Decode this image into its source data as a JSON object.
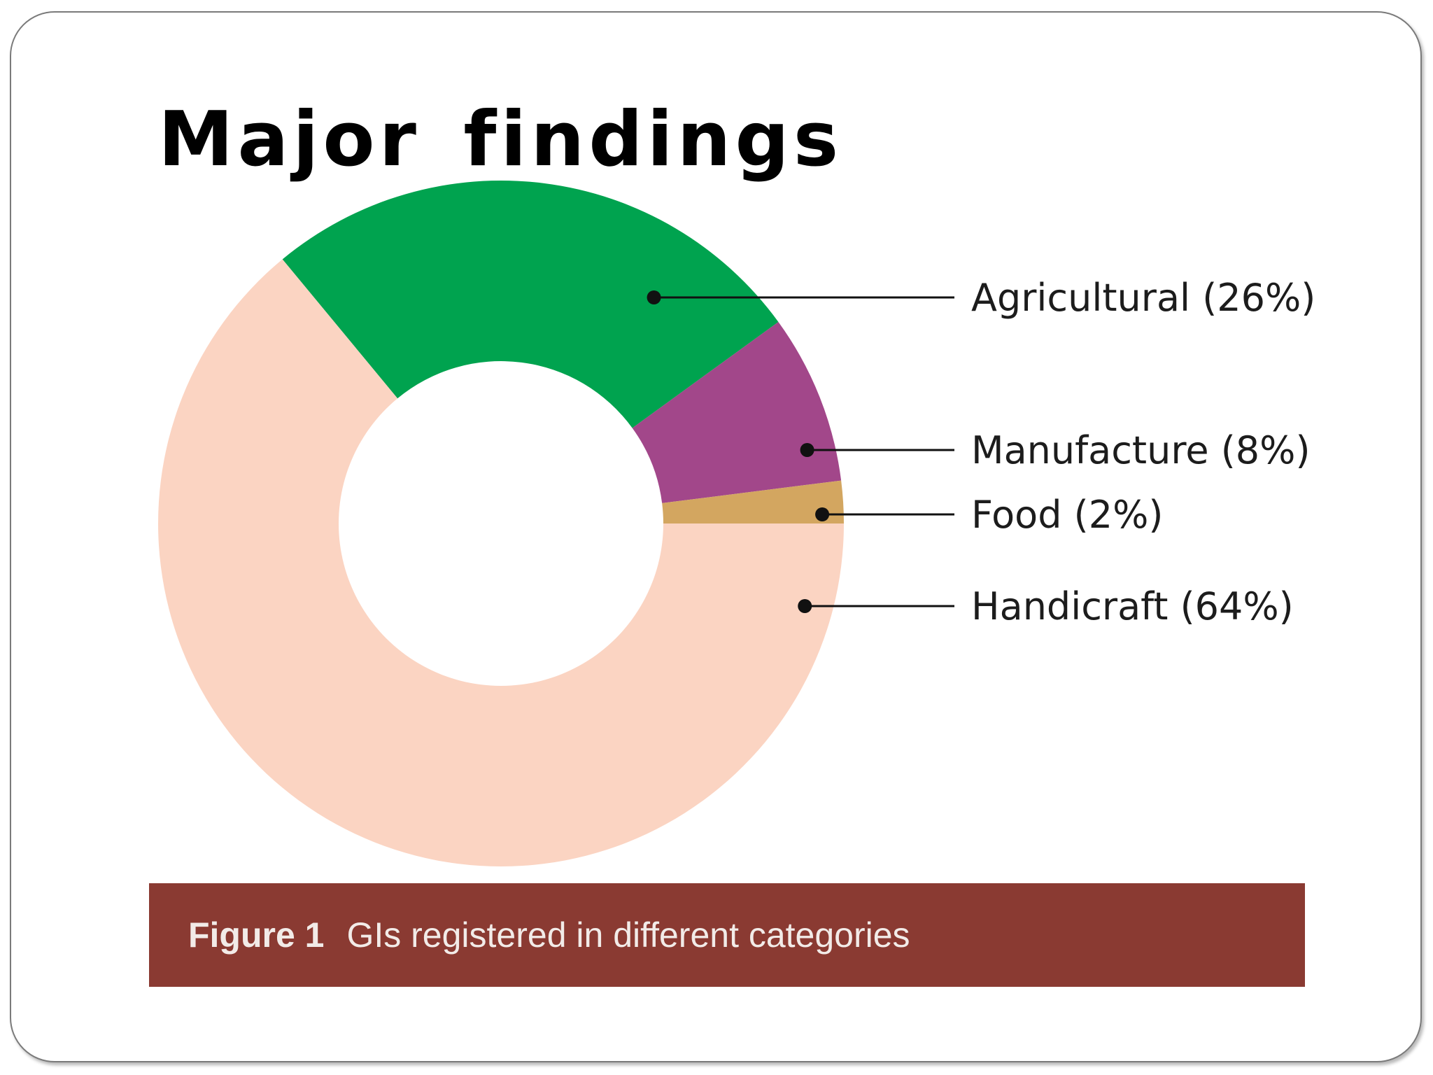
{
  "slide": {
    "title": "Major findings"
  },
  "chart_data": {
    "type": "pie",
    "variant": "donut",
    "categories": [
      "Agricultural (26%)",
      "Manufacture (8%)",
      "Food (2%)",
      "Handicraft (64%)"
    ],
    "values": [
      26,
      8,
      2,
      64
    ],
    "colors": [
      "#00a34f",
      "#a2478a",
      "#d3a660",
      "#fbd4c2"
    ],
    "legend_placement": "right"
  },
  "caption": {
    "label": "Figure 1",
    "text": "GIs registered in different categories",
    "background": "#8a3a32"
  }
}
